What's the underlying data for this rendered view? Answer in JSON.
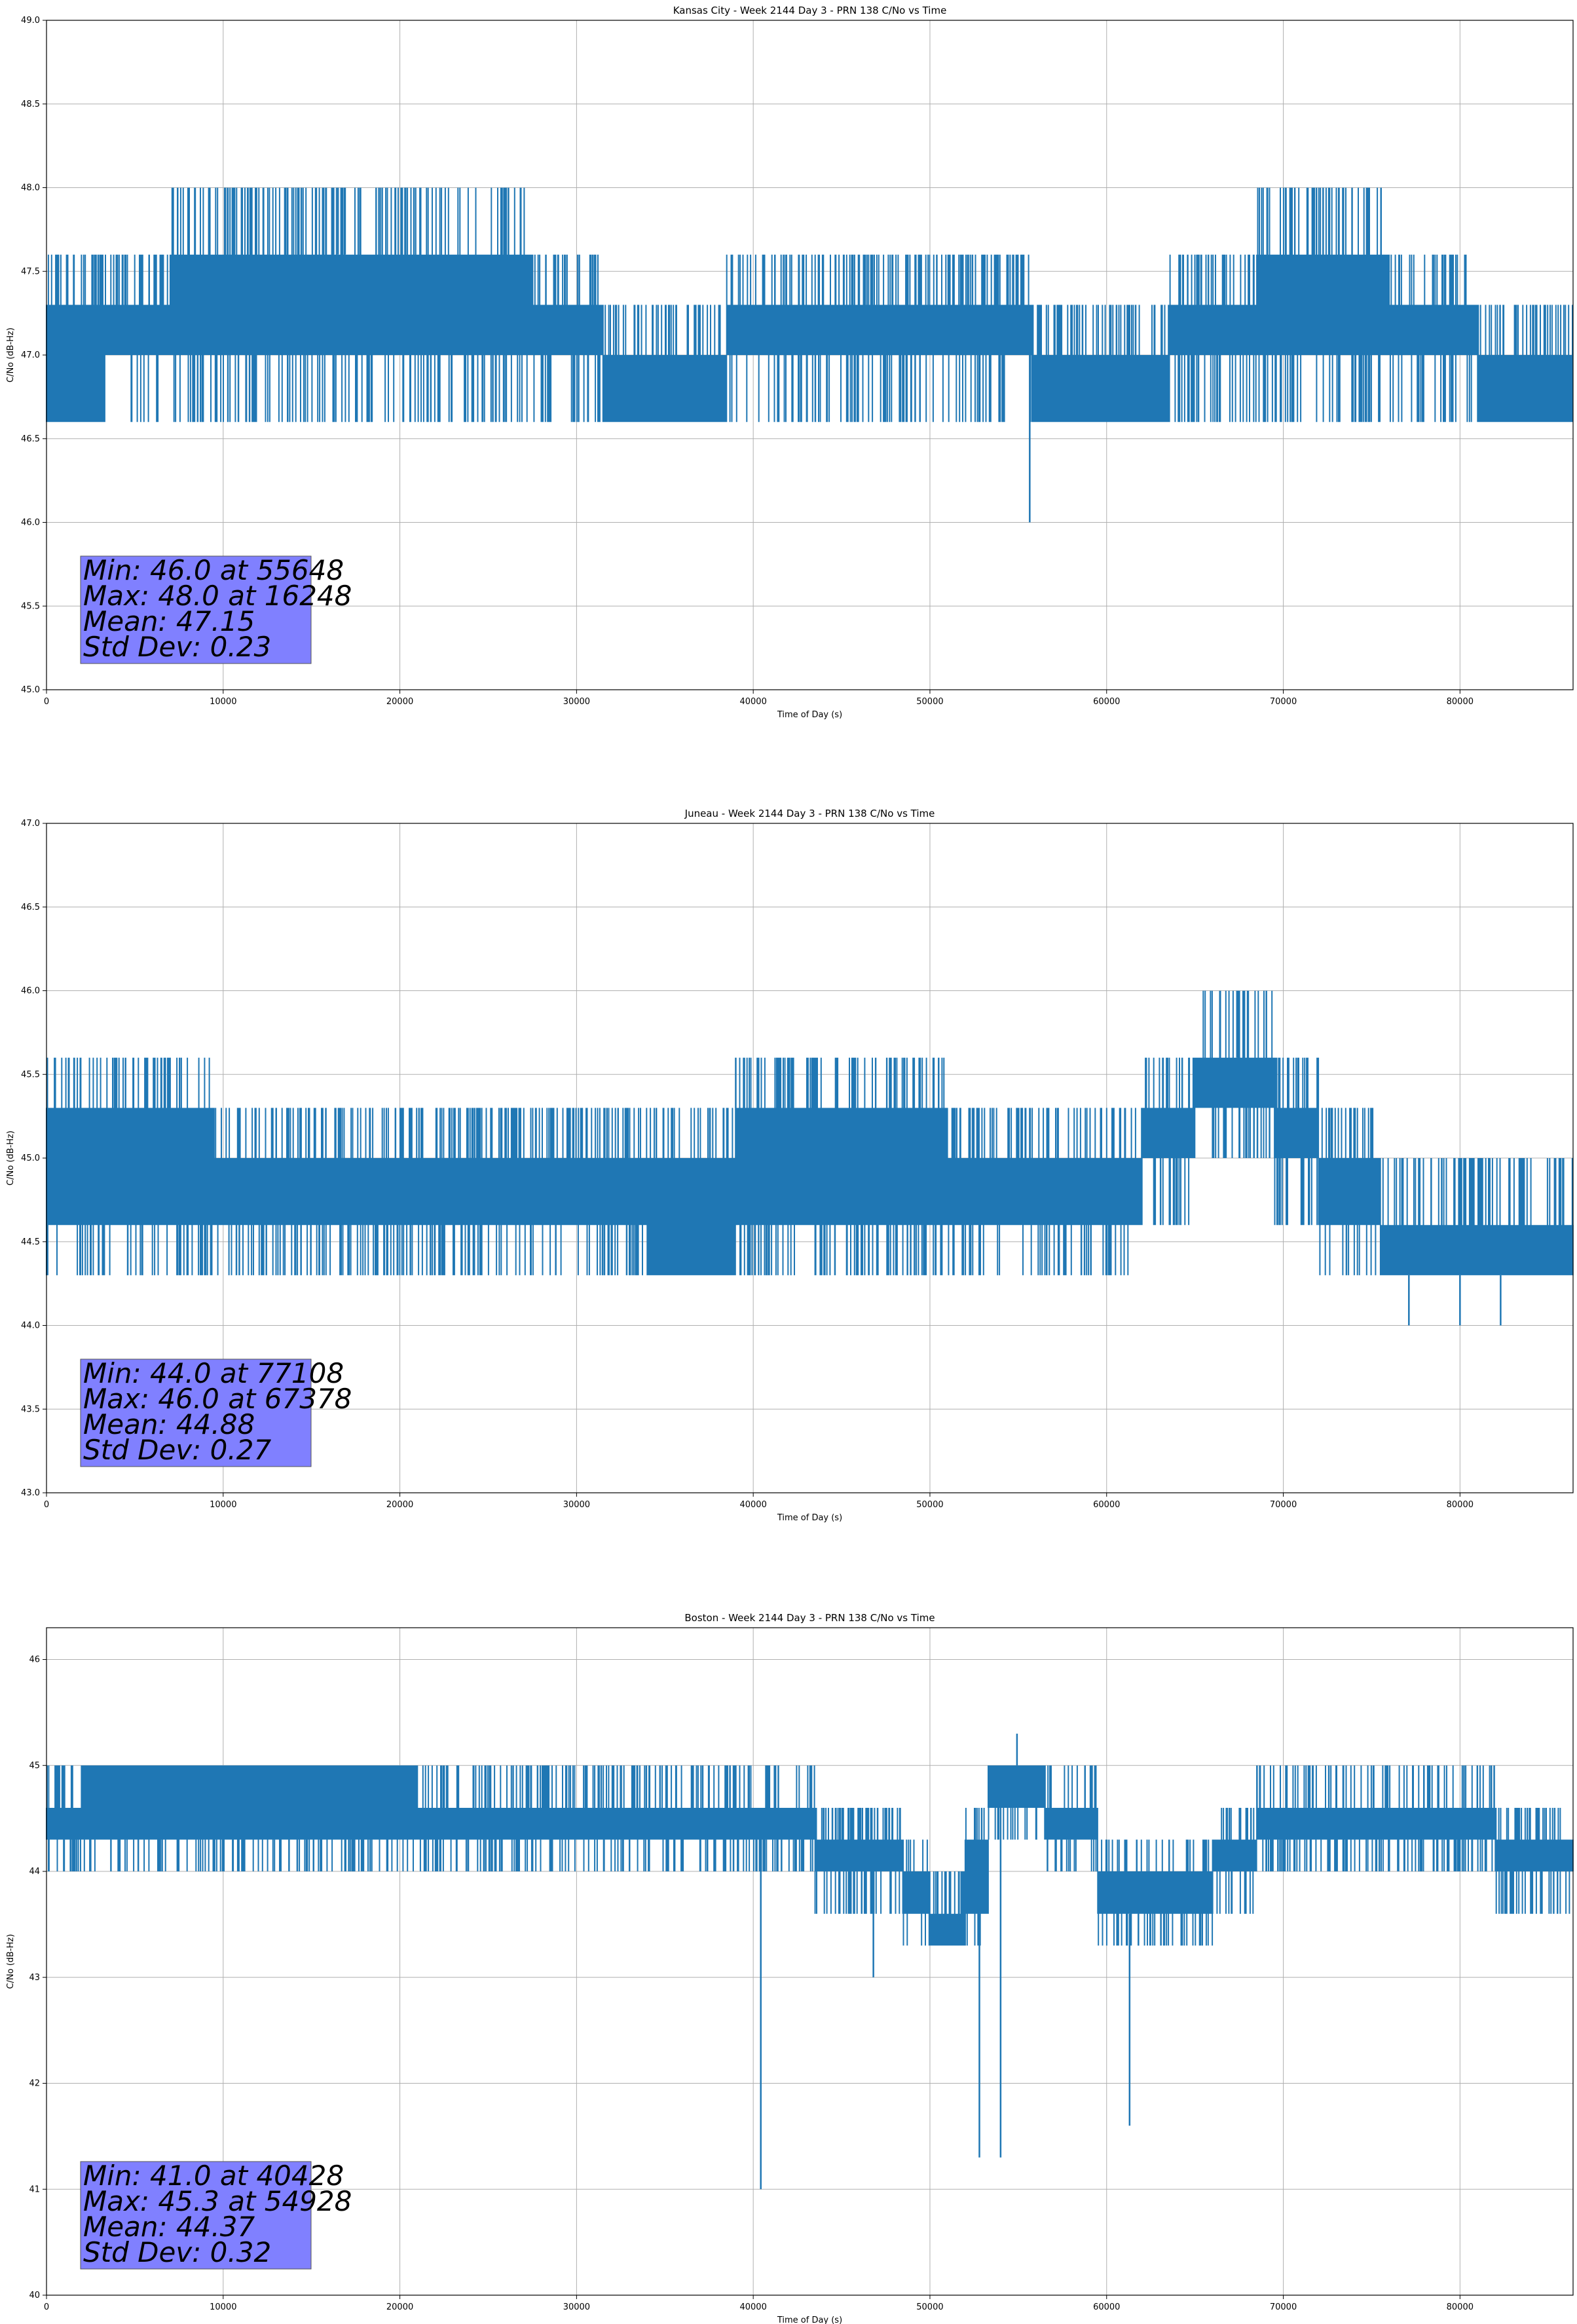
{
  "chart_data": [
    {
      "type": "line",
      "title": "Kansas City - Week 2144 Day 3 - PRN 138 C/No vs Time",
      "xlabel": "Time of Day (s)",
      "ylabel": "C/No (dB-Hz)",
      "xlim": [
        0,
        86400
      ],
      "ylim": [
        45.0,
        49.0
      ],
      "xticks": [
        0,
        10000,
        20000,
        30000,
        40000,
        50000,
        60000,
        70000,
        80000
      ],
      "yticks": [
        45.0,
        45.5,
        46.0,
        46.5,
        47.0,
        47.5,
        48.0,
        48.5,
        49.0
      ],
      "ytick_labels": [
        "45.0",
        "45.5",
        "46.0",
        "46.5",
        "47.0",
        "47.5",
        "48.0",
        "48.5",
        "49.0"
      ],
      "grid": true,
      "color": "#1f77b4",
      "levels": [
        46.6,
        47.0,
        47.3,
        47.6,
        48.0
      ],
      "segments": [
        {
          "start": 0,
          "end": 3300,
          "lo": 46.6,
          "hi": 47.3
        },
        {
          "start": 3300,
          "end": 7000,
          "lo": 47.0,
          "hi": 47.3
        },
        {
          "start": 7000,
          "end": 27500,
          "lo": 47.0,
          "hi": 47.6
        },
        {
          "start": 27500,
          "end": 31500,
          "lo": 47.0,
          "hi": 47.3
        },
        {
          "start": 31500,
          "end": 38500,
          "lo": 46.6,
          "hi": 47.0
        },
        {
          "start": 38500,
          "end": 55800,
          "lo": 47.0,
          "hi": 47.3
        },
        {
          "start": 55800,
          "end": 63500,
          "lo": 46.6,
          "hi": 47.0
        },
        {
          "start": 63500,
          "end": 68500,
          "lo": 47.0,
          "hi": 47.3
        },
        {
          "start": 68500,
          "end": 76000,
          "lo": 47.0,
          "hi": 47.6
        },
        {
          "start": 76000,
          "end": 81000,
          "lo": 47.0,
          "hi": 47.3
        },
        {
          "start": 81000,
          "end": 86400,
          "lo": 46.6,
          "hi": 47.0
        }
      ],
      "points": [
        {
          "x": 16248,
          "y": 48.0
        },
        {
          "x": 16500,
          "y": 48.0
        },
        {
          "x": 16900,
          "y": 48.0
        },
        {
          "x": 55648,
          "y": 46.0
        }
      ],
      "stats": {
        "min": "Min: 46.0 at 55648",
        "max": "Max: 48.0 at 16248",
        "mean": "Mean: 47.15",
        "std": "Std Dev: 0.23"
      }
    },
    {
      "type": "line",
      "title": "Juneau - Week 2144 Day 3 - PRN 138 C/No vs Time",
      "xlabel": "Time of Day (s)",
      "ylabel": "C/No (dB-Hz)",
      "xlim": [
        0,
        86400
      ],
      "ylim": [
        43.0,
        47.0
      ],
      "xticks": [
        0,
        10000,
        20000,
        30000,
        40000,
        50000,
        60000,
        70000,
        80000
      ],
      "yticks": [
        43.0,
        43.5,
        44.0,
        44.5,
        45.0,
        45.5,
        46.0,
        46.5,
        47.0
      ],
      "ytick_labels": [
        "43.0",
        "43.5",
        "44.0",
        "44.5",
        "45.0",
        "45.5",
        "46.0",
        "46.5",
        "47.0"
      ],
      "grid": true,
      "color": "#1f77b4",
      "levels": [
        44.3,
        44.6,
        45.0,
        45.3,
        45.6,
        46.0
      ],
      "segments": [
        {
          "start": 0,
          "end": 9500,
          "lo": 44.6,
          "hi": 45.3
        },
        {
          "start": 9500,
          "end": 34000,
          "lo": 44.6,
          "hi": 45.0
        },
        {
          "start": 34000,
          "end": 39000,
          "lo": 44.3,
          "hi": 45.0
        },
        {
          "start": 39000,
          "end": 51000,
          "lo": 44.6,
          "hi": 45.3
        },
        {
          "start": 51000,
          "end": 62000,
          "lo": 44.6,
          "hi": 45.0
        },
        {
          "start": 62000,
          "end": 65000,
          "lo": 45.0,
          "hi": 45.3
        },
        {
          "start": 65000,
          "end": 69500,
          "lo": 45.3,
          "hi": 45.6
        },
        {
          "start": 69500,
          "end": 72000,
          "lo": 45.0,
          "hi": 45.3
        },
        {
          "start": 72000,
          "end": 75500,
          "lo": 44.6,
          "hi": 45.0
        },
        {
          "start": 75500,
          "end": 86400,
          "lo": 44.3,
          "hi": 44.6
        }
      ],
      "points": [
        {
          "x": 67378,
          "y": 46.0
        },
        {
          "x": 77108,
          "y": 44.0
        },
        {
          "x": 80000,
          "y": 44.0
        },
        {
          "x": 82300,
          "y": 44.0
        }
      ],
      "stats": {
        "min": "Min: 44.0 at 77108",
        "max": "Max: 46.0 at 67378",
        "mean": "Mean: 44.88",
        "std": "Std Dev: 0.27"
      }
    },
    {
      "type": "line",
      "title": "Boston - Week 2144 Day 3 - PRN 138 C/No vs Time",
      "xlabel": "Time of Day (s)",
      "ylabel": "C/No (dB-Hz)",
      "xlim": [
        0,
        86400
      ],
      "ylim": [
        40.0,
        46.3
      ],
      "xticks": [
        0,
        10000,
        20000,
        30000,
        40000,
        50000,
        60000,
        70000,
        80000
      ],
      "yticks": [
        40,
        41,
        42,
        43,
        44,
        45,
        46
      ],
      "ytick_labels": [
        "40",
        "41",
        "42",
        "43",
        "44",
        "45",
        "46"
      ],
      "grid": true,
      "color": "#1f77b4",
      "levels": [
        43.3,
        43.6,
        44.0,
        44.3,
        44.6,
        45.0
      ],
      "segments": [
        {
          "start": 0,
          "end": 2000,
          "lo": 44.3,
          "hi": 44.6
        },
        {
          "start": 2000,
          "end": 21000,
          "lo": 44.3,
          "hi": 45.0
        },
        {
          "start": 21000,
          "end": 43500,
          "lo": 44.3,
          "hi": 44.6
        },
        {
          "start": 43500,
          "end": 48500,
          "lo": 44.0,
          "hi": 44.3
        },
        {
          "start": 48500,
          "end": 50000,
          "lo": 43.6,
          "hi": 44.0
        },
        {
          "start": 50000,
          "end": 52000,
          "lo": 43.3,
          "hi": 43.6
        },
        {
          "start": 52000,
          "end": 53300,
          "lo": 43.6,
          "hi": 44.3
        },
        {
          "start": 53300,
          "end": 56500,
          "lo": 44.6,
          "hi": 45.0
        },
        {
          "start": 56500,
          "end": 59500,
          "lo": 44.3,
          "hi": 44.6
        },
        {
          "start": 59500,
          "end": 66000,
          "lo": 43.6,
          "hi": 44.0
        },
        {
          "start": 66000,
          "end": 68500,
          "lo": 44.0,
          "hi": 44.3
        },
        {
          "start": 68500,
          "end": 82000,
          "lo": 44.3,
          "hi": 44.6
        },
        {
          "start": 82000,
          "end": 86400,
          "lo": 44.0,
          "hi": 44.3
        }
      ],
      "points": [
        {
          "x": 40428,
          "y": 41.0
        },
        {
          "x": 46800,
          "y": 43.0
        },
        {
          "x": 52800,
          "y": 41.3
        },
        {
          "x": 54000,
          "y": 41.3
        },
        {
          "x": 54928,
          "y": 45.3
        },
        {
          "x": 61300,
          "y": 41.6
        },
        {
          "x": 61800,
          "y": 43.3
        }
      ],
      "stats": {
        "min": "Min: 41.0 at 40428",
        "max": "Max: 45.3 at 54928",
        "mean": "Mean: 44.37",
        "std": "Std Dev: 0.32"
      }
    }
  ]
}
